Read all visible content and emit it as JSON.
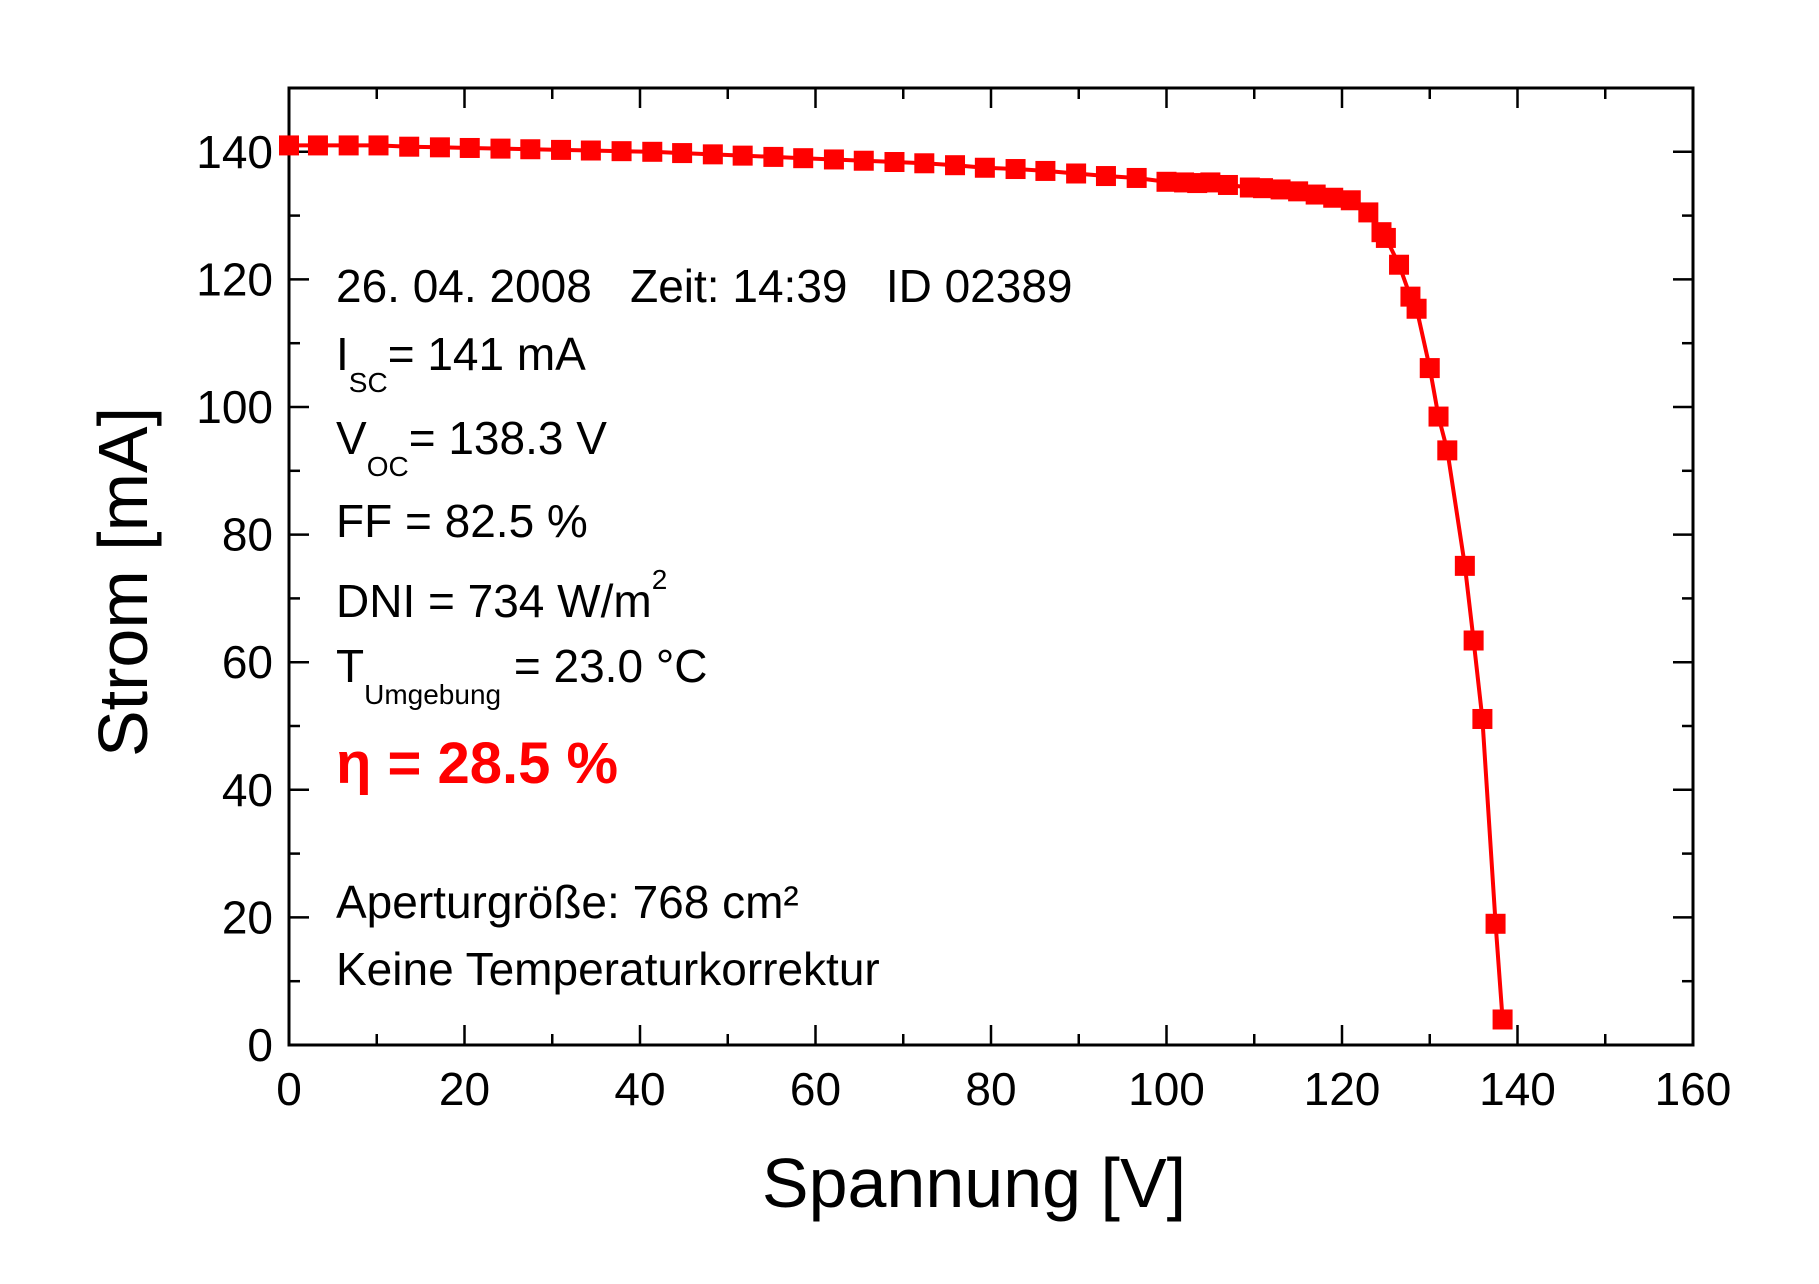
{
  "chart_data": {
    "type": "line",
    "xlabel": "Spannung [V]",
    "ylabel": "Strom [mA]",
    "xlim": [
      0,
      160
    ],
    "ylim": [
      0,
      150
    ],
    "x_ticks": [
      0,
      20,
      40,
      60,
      80,
      100,
      120,
      140,
      160
    ],
    "y_ticks": [
      0,
      20,
      40,
      60,
      80,
      100,
      120,
      140
    ],
    "grid": false,
    "series": [
      {
        "marker": "square",
        "color": "#ff0000",
        "x": [
          0,
          3.3,
          6.8,
          10.2,
          13.7,
          17.2,
          20.6,
          24.1,
          27.5,
          31.0,
          34.4,
          37.9,
          41.4,
          44.8,
          48.3,
          51.7,
          55.2,
          58.6,
          62.1,
          65.5,
          69.0,
          72.4,
          75.9,
          79.3,
          82.8,
          86.2,
          89.7,
          93.1,
          96.6,
          100.0,
          102.0,
          103.5,
          105.0,
          107.0,
          109.5,
          111.0,
          113.0,
          115.0,
          117.0,
          119.0,
          121.0,
          123.0,
          124.5,
          125.0,
          126.5,
          127.8,
          128.5,
          130.0,
          131.0,
          132.0,
          134.0,
          135.0,
          136.0,
          137.5,
          138.3
        ],
        "y": [
          141,
          141,
          141,
          141,
          140.8,
          140.7,
          140.6,
          140.5,
          140.4,
          140.3,
          140.2,
          140.1,
          140,
          139.8,
          139.6,
          139.4,
          139.2,
          139,
          138.8,
          138.6,
          138.4,
          138.2,
          137.9,
          137.5,
          137.3,
          137,
          136.6,
          136.2,
          135.9,
          135.3,
          135.2,
          135.1,
          135.2,
          134.8,
          134.4,
          134.3,
          134.1,
          133.8,
          133.3,
          132.8,
          132.4,
          130.5,
          127.4,
          126.5,
          122.3,
          117.3,
          115.4,
          106.1,
          98.5,
          93.2,
          75.1,
          63.4,
          51.1,
          19.0,
          4.0
        ]
      }
    ],
    "annotations": {
      "line1": "26. 04. 2008   Zeit: 14:39   ID 02389",
      "isc_main": "I",
      "isc_sub": "SC",
      "isc_rest": "= 141 mA",
      "voc_main": "V",
      "voc_sub": "OC",
      "voc_rest": "= 138.3 V",
      "ff": "FF = 82.5 %",
      "dni_main": "DNI = 734 W/m",
      "dni_sup": "2",
      "t_main": "T",
      "t_sub": "Umgebung",
      "t_rest": " = 23.0 °C",
      "eta": "η = 28.5 %",
      "aperture": "Aperturgröße: 768 cm²",
      "note": "Keine Temperaturkorrektur"
    },
    "colors": {
      "series": "#ff0000",
      "eta": "#ff0000",
      "axis": "#000000"
    }
  }
}
